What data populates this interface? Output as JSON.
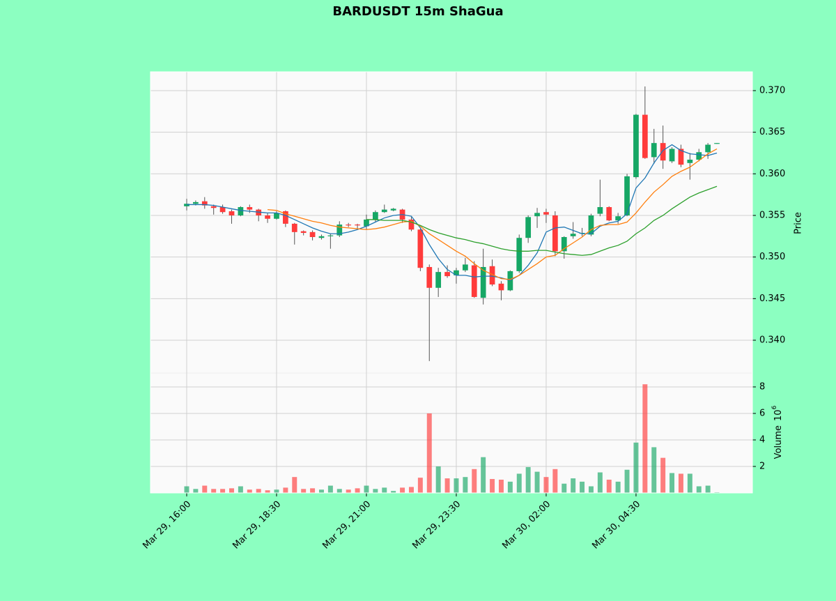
{
  "chart_data": {
    "type": "candlestick",
    "title": "BARDUSDT 15m ShaGua",
    "x": [
      0,
      1,
      2,
      3,
      4,
      5,
      6,
      7,
      8,
      9,
      10,
      11,
      12,
      13,
      14,
      15,
      16,
      17,
      18,
      19,
      20,
      21,
      22,
      23,
      24,
      25,
      26,
      27,
      28,
      29,
      30,
      31,
      32,
      33,
      34,
      35,
      36,
      37,
      38,
      39,
      40,
      41,
      42,
      43,
      44,
      45,
      46,
      47,
      48,
      49,
      50,
      51,
      52,
      53,
      54,
      55,
      56,
      57,
      58,
      59
    ],
    "xlim": [
      -4.03,
      62.95
    ],
    "xticks": [
      {
        "value": 0,
        "label": "Mar 29, 16:00"
      },
      {
        "value": 10,
        "label": "Mar 29, 18:30"
      },
      {
        "value": 20,
        "label": "Mar 29, 21:00"
      },
      {
        "value": 30,
        "label": "Mar 29, 23:30"
      },
      {
        "value": 40,
        "label": "Mar 30, 02:00"
      },
      {
        "value": 50,
        "label": "Mar 30, 04:30"
      }
    ],
    "open": [
      0.3561,
      0.3564,
      0.3567,
      0.3561,
      0.356,
      0.3555,
      0.355,
      0.356,
      0.3557,
      0.355,
      0.3546,
      0.3555,
      0.354,
      0.3531,
      0.353,
      0.3523,
      0.3525,
      0.3526,
      0.3539,
      0.3539,
      0.3537,
      0.3545,
      0.3554,
      0.3556,
      0.3557,
      0.3545,
      0.3533,
      0.3488,
      0.3463,
      0.3482,
      0.3478,
      0.3484,
      0.349,
      0.3451,
      0.3489,
      0.3468,
      0.346,
      0.3483,
      0.3523,
      0.3549,
      0.3554,
      0.355,
      0.3507,
      0.3525,
      0.3528,
      0.3527,
      0.3552,
      0.356,
      0.3544,
      0.355,
      0.3596,
      0.3671,
      0.362,
      0.3637,
      0.3615,
      0.363,
      0.3613,
      0.3617,
      0.3626,
      0.3636
    ],
    "high": [
      0.357,
      0.3568,
      0.3572,
      0.3563,
      0.3563,
      0.3557,
      0.3561,
      0.3563,
      0.3558,
      0.3553,
      0.3555,
      0.3556,
      0.3541,
      0.3532,
      0.3532,
      0.3527,
      0.3528,
      0.3543,
      0.3541,
      0.354,
      0.3551,
      0.3556,
      0.3563,
      0.3559,
      0.3558,
      0.3548,
      0.3534,
      0.3491,
      0.3487,
      0.349,
      0.3487,
      0.3499,
      0.3495,
      0.351,
      0.3497,
      0.3471,
      0.3484,
      0.3527,
      0.355,
      0.3559,
      0.3558,
      0.3555,
      0.3525,
      0.3542,
      0.3535,
      0.3552,
      0.3593,
      0.3561,
      0.3553,
      0.36,
      0.3672,
      0.3705,
      0.3654,
      0.3658,
      0.3632,
      0.3635,
      0.3625,
      0.363,
      0.3637,
      0.3637
    ],
    "low": [
      0.3556,
      0.3562,
      0.3558,
      0.3551,
      0.3552,
      0.354,
      0.3549,
      0.3553,
      0.3543,
      0.3541,
      0.3545,
      0.3536,
      0.3515,
      0.3526,
      0.352,
      0.3521,
      0.351,
      0.3524,
      0.3536,
      0.3533,
      0.3533,
      0.3542,
      0.3553,
      0.3555,
      0.3541,
      0.3531,
      0.3483,
      0.3375,
      0.3452,
      0.3475,
      0.3468,
      0.3482,
      0.3451,
      0.3443,
      0.3465,
      0.3448,
      0.3459,
      0.3481,
      0.3517,
      0.3535,
      0.3541,
      0.3501,
      0.3498,
      0.3522,
      0.3525,
      0.3525,
      0.3549,
      0.3543,
      0.354,
      0.3549,
      0.3594,
      0.3618,
      0.3612,
      0.3606,
      0.3613,
      0.3608,
      0.3593,
      0.3615,
      0.3618,
      0.3636
    ],
    "close": [
      0.3564,
      0.3566,
      0.3562,
      0.3559,
      0.3554,
      0.355,
      0.356,
      0.3557,
      0.355,
      0.3546,
      0.3553,
      0.354,
      0.353,
      0.3529,
      0.3524,
      0.3525,
      0.3526,
      0.3539,
      0.3538,
      0.3538,
      0.3545,
      0.3554,
      0.3557,
      0.3558,
      0.3545,
      0.3533,
      0.3487,
      0.3463,
      0.3482,
      0.3477,
      0.3484,
      0.3491,
      0.3452,
      0.3488,
      0.3467,
      0.346,
      0.3483,
      0.3523,
      0.3548,
      0.3553,
      0.3551,
      0.3507,
      0.3524,
      0.3528,
      0.3529,
      0.355,
      0.356,
      0.3544,
      0.3549,
      0.3597,
      0.3671,
      0.3619,
      0.3637,
      0.3616,
      0.363,
      0.3611,
      0.3617,
      0.3626,
      0.3635,
      0.3637
    ],
    "volume": [
      0.5,
      0.3,
      0.55,
      0.3,
      0.3,
      0.35,
      0.5,
      0.25,
      0.3,
      0.2,
      0.25,
      0.4,
      1.2,
      0.3,
      0.35,
      0.25,
      0.55,
      0.3,
      0.25,
      0.35,
      0.55,
      0.3,
      0.4,
      0.15,
      0.4,
      0.45,
      1.15,
      6.0,
      2.0,
      1.1,
      1.1,
      1.2,
      1.8,
      2.7,
      1.05,
      1.0,
      0.85,
      1.45,
      1.95,
      1.6,
      1.2,
      1.8,
      0.7,
      1.1,
      0.85,
      0.5,
      1.55,
      1.0,
      0.85,
      1.75,
      3.8,
      8.2,
      3.45,
      2.65,
      1.5,
      1.45,
      1.45,
      0.5,
      0.55,
      0.05
    ],
    "up_color": "#16a765",
    "down_color": "#ff3b3b",
    "moving_averages": [
      {
        "color": "#1f77b4",
        "values": [
          0.3563,
          0.3563,
          0.3563,
          0.3562,
          0.356,
          0.3558,
          0.3556,
          0.3555,
          0.3554,
          0.3553,
          0.3553,
          0.355,
          0.3545,
          0.354,
          0.3535,
          0.3531,
          0.3528,
          0.3528,
          0.353,
          0.3533,
          0.3537,
          0.3542,
          0.3547,
          0.355,
          0.3551,
          0.3549,
          0.3535,
          0.3515,
          0.3498,
          0.3485,
          0.3478,
          0.3478,
          0.3476,
          0.3477,
          0.3477,
          0.3475,
          0.3472,
          0.3478,
          0.349,
          0.3505,
          0.353,
          0.3535,
          0.3536,
          0.3532,
          0.3528,
          0.3528,
          0.3537,
          0.3541,
          0.3543,
          0.3552,
          0.3583,
          0.3595,
          0.3613,
          0.3628,
          0.3635,
          0.3628,
          0.3624,
          0.3623,
          0.3622,
          0.3625
        ]
      },
      {
        "color": "#ff7f0e",
        "values": [
          null,
          null,
          null,
          null,
          null,
          null,
          null,
          null,
          null,
          0.3557,
          0.3556,
          0.3552,
          0.3549,
          0.3546,
          0.3543,
          0.3541,
          0.3538,
          0.3536,
          0.3535,
          0.3534,
          0.3533,
          0.3534,
          0.3536,
          0.3539,
          0.3542,
          0.3543,
          0.3537,
          0.3528,
          0.3521,
          0.3514,
          0.3507,
          0.3501,
          0.3492,
          0.3484,
          0.3479,
          0.3474,
          0.3473,
          0.3478,
          0.3485,
          0.3492,
          0.35,
          0.3502,
          0.351,
          0.3517,
          0.3524,
          0.3533,
          0.3538,
          0.3539,
          0.3539,
          0.3542,
          0.3553,
          0.3566,
          0.3578,
          0.3587,
          0.3597,
          0.3603,
          0.3608,
          0.3616,
          0.3624,
          0.363
        ]
      },
      {
        "color": "#2ca02c",
        "values": [
          null,
          null,
          null,
          null,
          null,
          null,
          null,
          null,
          null,
          null,
          null,
          null,
          null,
          null,
          null,
          null,
          null,
          null,
          null,
          null,
          0.3545,
          0.3545,
          0.3544,
          0.3544,
          0.3544,
          0.3542,
          0.3538,
          0.3533,
          0.3529,
          0.3526,
          0.3523,
          0.3521,
          0.3518,
          0.3516,
          0.3513,
          0.351,
          0.3508,
          0.3507,
          0.3507,
          0.3508,
          0.3508,
          0.3506,
          0.3504,
          0.3503,
          0.3502,
          0.3503,
          0.3507,
          0.3511,
          0.3514,
          0.3519,
          0.3528,
          0.3535,
          0.3544,
          0.355,
          0.3558,
          0.3565,
          0.3572,
          0.3577,
          0.3581,
          0.3585
        ]
      }
    ],
    "ylabel": "Price",
    "ylim": [
      0.33606,
      0.37226
    ],
    "yticks": [
      {
        "value": 0.34,
        "label": "0.340"
      },
      0.345,
      {
        "value": 0.35,
        "label": "0.350"
      },
      0.355,
      {
        "value": 0.36,
        "label": "0.360"
      },
      0.365,
      {
        "value": 0.37,
        "label": "0.370"
      }
    ],
    "volume_ylabel": "Volume",
    "volume_unit": {
      "base": "10",
      "exponent": "6"
    },
    "volume_ylim": [
      0,
      9.05
    ],
    "volume_yticks": [
      2,
      4,
      6,
      8
    ],
    "grid": true
  }
}
